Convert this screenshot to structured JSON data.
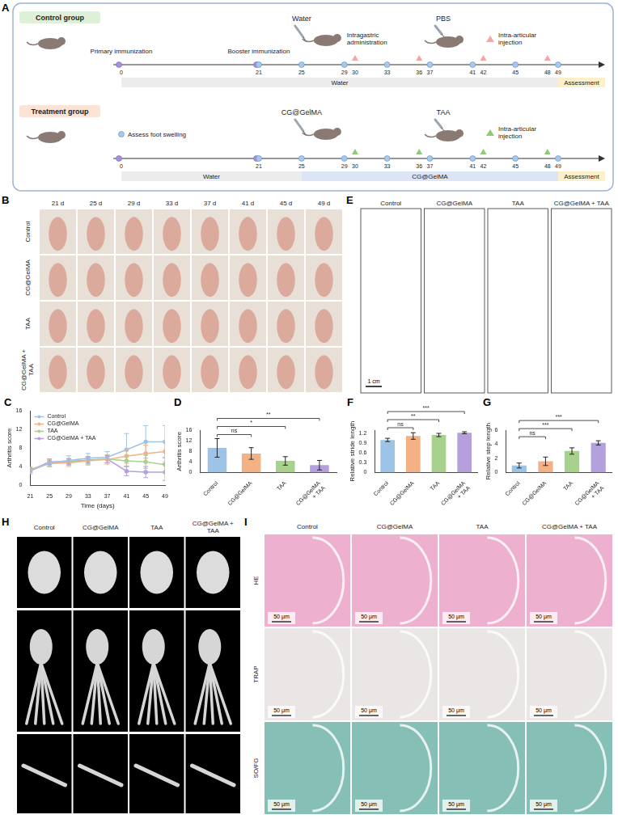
{
  "panel_A": {
    "letter": "A",
    "days": [
      0,
      21,
      25,
      29,
      30,
      33,
      36,
      37,
      41,
      42,
      45,
      48,
      49
    ],
    "immunization_days": [
      0,
      21
    ],
    "swelling_days": [
      21,
      25,
      29,
      33,
      37,
      41,
      45,
      49
    ],
    "injection_days": [
      30,
      36,
      42,
      48
    ],
    "groups": [
      {
        "name": "Control group",
        "immunization": [
          {
            "day": 0,
            "text": "Primary immunization"
          },
          {
            "day": 21,
            "text": "Booster immunization"
          }
        ],
        "oral": {
          "day": 25,
          "text": "Water",
          "note": "Intragastric administration"
        },
        "injection": {
          "text": "PBS",
          "note": "Intra-articular injection"
        },
        "bars": [
          {
            "start": 0,
            "end": 49,
            "text": "Water"
          },
          {
            "start": 49,
            "text": "Assessment"
          }
        ]
      },
      {
        "name": "Treatment group",
        "key": "Assess foot swelling",
        "oral": {
          "day": 25,
          "text": "CG@GelMA"
        },
        "injection": {
          "text": "TAA",
          "note": "Intra-articular injection"
        },
        "bars": [
          {
            "start": 0,
            "end": 25,
            "text": "Water"
          },
          {
            "start": 25,
            "end": 49,
            "text": "CG@GelMA"
          },
          {
            "start": 49,
            "text": "Assessment"
          }
        ]
      }
    ]
  },
  "panel_B": {
    "letter": "B",
    "columns": [
      "21 d",
      "25 d",
      "29 d",
      "33 d",
      "37 d",
      "41 d",
      "45 d",
      "49 d"
    ],
    "rows": [
      "Control",
      "CG@GelMA",
      "TAA",
      "CG@GelMA + TAA"
    ]
  },
  "panel_E": {
    "letter": "E",
    "columns": [
      "Control",
      "CG@GelMA",
      "TAA",
      "CG@GelMA + TAA"
    ],
    "scale_bar": "1 cm"
  },
  "panel_H": {
    "letter": "H",
    "columns": [
      "Control",
      "CG@GelMA",
      "TAA",
      "CG@GelMA + TAA"
    ]
  },
  "panel_I": {
    "letter": "I",
    "columns": [
      "Control",
      "CG@GelMA",
      "TAA",
      "CG@GelMA + TAA"
    ],
    "rows": [
      "HE",
      "TRAP",
      "SO/FG"
    ],
    "scale_bar": "50 μm"
  },
  "chart_data": [
    {
      "panel": "C",
      "type": "line",
      "x": [
        21,
        25,
        29,
        33,
        37,
        41,
        45,
        49
      ],
      "xlim": [
        21,
        49
      ],
      "xticks": [
        21,
        25,
        29,
        33,
        37,
        41,
        45,
        49
      ],
      "ylim": [
        0,
        16
      ],
      "yticks": [
        0,
        4,
        8,
        12,
        16
      ],
      "x_label": "Time (days)",
      "y_label": "Arthritis score",
      "grid": false,
      "legend": "upper left",
      "marker": "circle",
      "series": [
        {
          "name": "Control",
          "color": "#9dc3e6",
          "values": [
            3.0,
            4.8,
            5.3,
            5.8,
            6.0,
            7.6,
            9.3,
            9.3
          ],
          "errors": [
            0.6,
            0.8,
            1.0,
            1.0,
            1.2,
            3.5,
            3.5,
            3.5
          ]
        },
        {
          "name": "CG@GelMA",
          "color": "#f4b183",
          "values": [
            3.2,
            4.7,
            4.8,
            5.2,
            5.5,
            6.2,
            6.8,
            7.2
          ],
          "errors": [
            0.5,
            0.7,
            0.8,
            0.9,
            1.0,
            1.5,
            1.8,
            2.2
          ]
        },
        {
          "name": "TAA",
          "color": "#a9d18e",
          "values": [
            3.4,
            4.6,
            5.0,
            5.3,
            5.6,
            5.2,
            5.0,
            4.4
          ],
          "errors": [
            0.5,
            0.6,
            0.7,
            0.8,
            0.8,
            1.2,
            1.4,
            1.6
          ]
        },
        {
          "name": "CG@GelMA + TAA",
          "color": "#b4a0dc",
          "values": [
            3.2,
            5.0,
            5.1,
            5.4,
            5.6,
            3.0,
            2.8,
            2.8
          ],
          "errors": [
            0.4,
            0.6,
            0.6,
            0.7,
            0.8,
            1.0,
            1.2,
            1.8
          ]
        }
      ]
    },
    {
      "panel": "D",
      "type": "bar",
      "categories": [
        "Control",
        "CG@GelMA",
        "TAA",
        "CG@GelMA + TAA"
      ],
      "values": [
        9.3,
        7.2,
        4.4,
        2.8
      ],
      "errors": [
        3.5,
        2.2,
        1.6,
        1.8
      ],
      "colors": [
        "#9dc3e6",
        "#f4b183",
        "#a9d18e",
        "#b4a0dc"
      ],
      "ylim": [
        0,
        16
      ],
      "yticks": [
        0,
        4,
        8,
        12,
        16
      ],
      "y_label": "Arthritis score",
      "grid": false,
      "significance": [
        {
          "pair": [
            "Control",
            "CG@GelMA"
          ],
          "label": "ns"
        },
        {
          "pair": [
            "Control",
            "TAA"
          ],
          "label": "*"
        },
        {
          "pair": [
            "Control",
            "CG@GelMA + TAA"
          ],
          "label": "**"
        }
      ]
    },
    {
      "panel": "F",
      "type": "bar",
      "categories": [
        "Control",
        "CG@GelMA",
        "TAA",
        "CG@GelMA + TAA"
      ],
      "values": [
        1.0,
        1.12,
        1.15,
        1.22
      ],
      "errors": [
        0.05,
        0.1,
        0.05,
        0.03
      ],
      "colors": [
        "#9dc3e6",
        "#f4b183",
        "#a9d18e",
        "#b4a0dc"
      ],
      "ylim": [
        0,
        1.3
      ],
      "yticks": [
        0,
        0.3,
        0.6,
        0.9,
        1.2
      ],
      "y_label": "Relative stride length",
      "grid": false,
      "significance": [
        {
          "pair": [
            "Control",
            "CG@GelMA"
          ],
          "label": "ns"
        },
        {
          "pair": [
            "Control",
            "TAA"
          ],
          "label": "**"
        },
        {
          "pair": [
            "Control",
            "CG@GelMA + TAA"
          ],
          "label": "***"
        }
      ]
    },
    {
      "panel": "G",
      "type": "bar",
      "categories": [
        "Control",
        "CG@GelMA",
        "TAA",
        "CG@GelMA + TAA"
      ],
      "values": [
        1.0,
        1.6,
        3.05,
        4.2
      ],
      "errors": [
        0.35,
        0.6,
        0.45,
        0.3
      ],
      "colors": [
        "#9dc3e6",
        "#f4b183",
        "#a9d18e",
        "#b4a0dc"
      ],
      "ylim": [
        0,
        6
      ],
      "yticks": [
        0,
        2,
        4,
        6
      ],
      "y_label": "Relative step length",
      "grid": false,
      "significance": [
        {
          "pair": [
            "Control",
            "CG@GelMA"
          ],
          "label": "ns"
        },
        {
          "pair": [
            "Control",
            "TAA"
          ],
          "label": "***"
        },
        {
          "pair": [
            "Control",
            "CG@GelMA + TAA"
          ],
          "label": "***"
        }
      ]
    }
  ]
}
